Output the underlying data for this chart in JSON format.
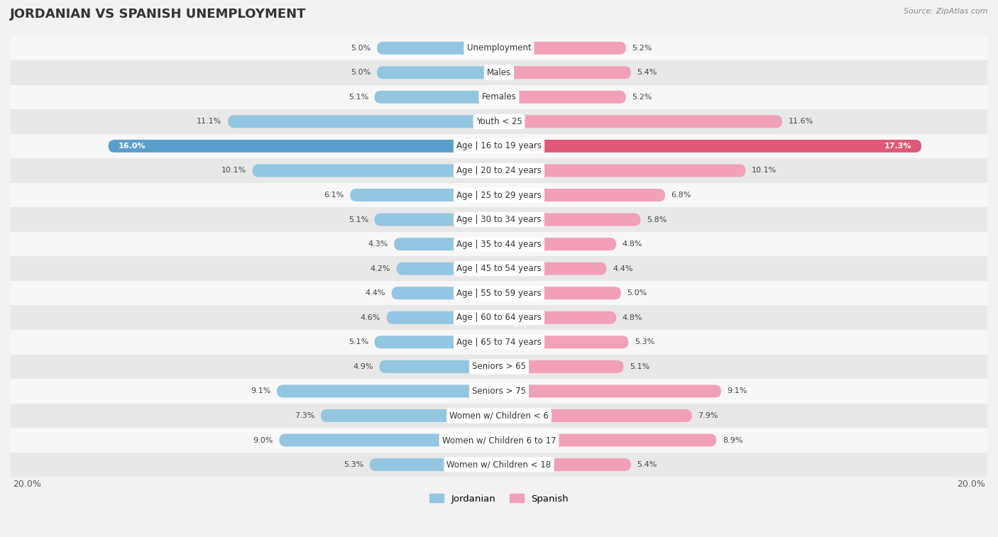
{
  "title": "JORDANIAN VS SPANISH UNEMPLOYMENT",
  "source": "Source: ZipAtlas.com",
  "categories": [
    "Unemployment",
    "Males",
    "Females",
    "Youth < 25",
    "Age | 16 to 19 years",
    "Age | 20 to 24 years",
    "Age | 25 to 29 years",
    "Age | 30 to 34 years",
    "Age | 35 to 44 years",
    "Age | 45 to 54 years",
    "Age | 55 to 59 years",
    "Age | 60 to 64 years",
    "Age | 65 to 74 years",
    "Seniors > 65",
    "Seniors > 75",
    "Women w/ Children < 6",
    "Women w/ Children 6 to 17",
    "Women w/ Children < 18"
  ],
  "jordanian": [
    5.0,
    5.0,
    5.1,
    11.1,
    16.0,
    10.1,
    6.1,
    5.1,
    4.3,
    4.2,
    4.4,
    4.6,
    5.1,
    4.9,
    9.1,
    7.3,
    9.0,
    5.3
  ],
  "spanish": [
    5.2,
    5.4,
    5.2,
    11.6,
    17.3,
    10.1,
    6.8,
    5.8,
    4.8,
    4.4,
    5.0,
    4.8,
    5.3,
    5.1,
    9.1,
    7.9,
    8.9,
    5.4
  ],
  "jordanian_color": "#93C6E0",
  "spanish_color": "#F2A0B8",
  "highlight_row": 4,
  "highlight_jcolor": "#5A9FCC",
  "highlight_scolor": "#E05878",
  "bar_height": 0.52,
  "xlim": 20.0,
  "row_bg_light": "#f7f7f7",
  "row_bg_dark": "#e8e8e8",
  "label_bg": "#ffffff",
  "label_fontsize": 8.5,
  "value_fontsize": 8.0,
  "title_fontsize": 13,
  "source_fontsize": 8,
  "legend_jordanian": "Jordanian",
  "legend_spanish": "Spanish"
}
